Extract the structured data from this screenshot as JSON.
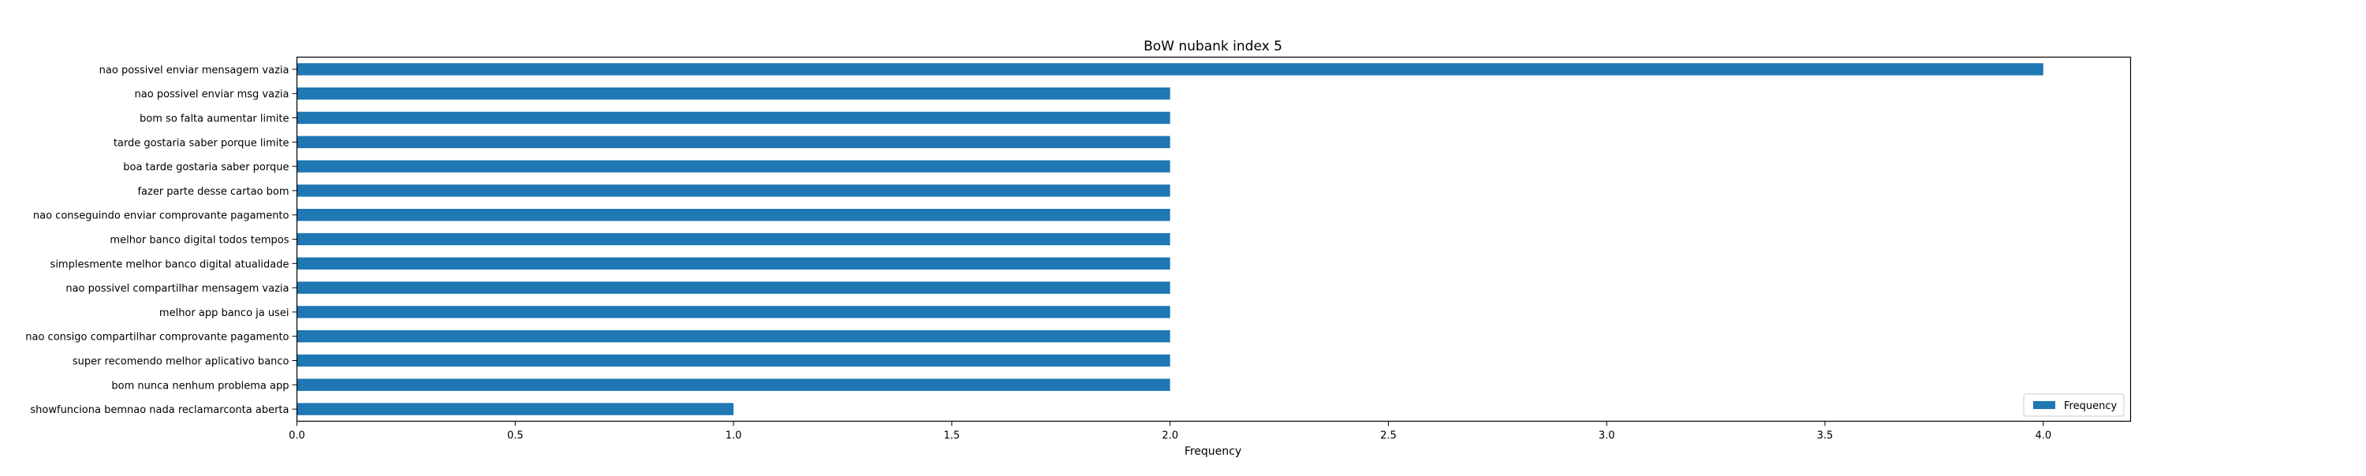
{
  "chart_data": {
    "type": "bar",
    "orientation": "horizontal",
    "title": "BoW nubank index 5",
    "xlabel": "Frequency",
    "ylabel": "",
    "xlim": [
      0,
      4.2
    ],
    "xticks": [
      "0.0",
      "0.5",
      "1.0",
      "1.5",
      "2.0",
      "2.5",
      "3.0",
      "3.5",
      "4.0"
    ],
    "grid": false,
    "legend": {
      "position": "lower-right",
      "entries": [
        "Frequency"
      ]
    },
    "bar_color": "#1f77b4",
    "categories": [
      "nao possivel enviar mensagem vazia",
      "nao possivel enviar msg vazia",
      "bom so falta aumentar limite",
      "tarde gostaria saber porque limite",
      "boa tarde gostaria saber porque",
      "fazer parte desse cartao bom",
      "nao conseguindo enviar comprovante pagamento",
      "melhor banco digital todos tempos",
      "simplesmente melhor banco digital atualidade",
      "nao possivel compartilhar mensagem vazia",
      "melhor app banco ja usei",
      "nao consigo compartilhar comprovante pagamento",
      "super recomendo melhor aplicativo banco",
      "bom nunca nenhum problema app",
      "showfunciona bemnao nada reclamarconta aberta"
    ],
    "series": [
      {
        "name": "Frequency",
        "values": [
          4,
          2,
          2,
          2,
          2,
          2,
          2,
          2,
          2,
          2,
          2,
          2,
          2,
          2,
          1
        ]
      }
    ]
  }
}
